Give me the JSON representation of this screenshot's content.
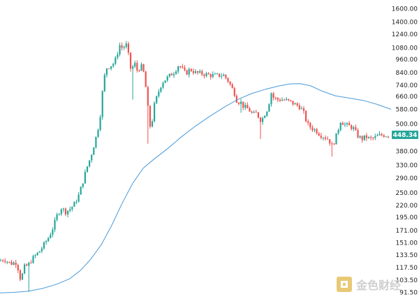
{
  "chart_data": {
    "type": "candlestick",
    "title": "",
    "xlabel": "",
    "ylabel": "",
    "y_scale": "log",
    "ylim": [
      88,
      1700
    ],
    "grid": false,
    "up_color": "#26a69a",
    "down_color": "#ef5350",
    "ma_color": "#4a9ad8",
    "last_price": 448.34,
    "last_price_label": "448.34",
    "last_price_color": "#26a69a",
    "y_ticks": [
      1600,
      1400,
      1240,
      1080,
      960,
      840,
      740,
      660,
      580,
      500,
      448.34,
      380,
      330,
      290,
      250,
      220,
      195,
      171,
      151,
      133.5,
      117.5,
      103.5,
      91.5
    ],
    "y_tick_labels": [
      "1600.00",
      "1400.00",
      "1240.00",
      "1080.00",
      "960.00",
      "840.00",
      "740.00",
      "660.00",
      "580.00",
      "500.00",
      "",
      "380.00",
      "330.00",
      "290.00",
      "250.00",
      "220.00",
      "195.00",
      "171.00",
      "151.00",
      "133.50",
      "117.50",
      "103.50",
      "91.50"
    ],
    "anchors": [
      [
        0,
        126
      ],
      [
        6,
        128
      ],
      [
        12,
        124
      ],
      [
        18,
        122
      ],
      [
        22,
        125
      ],
      [
        26,
        116
      ],
      [
        30,
        102
      ],
      [
        34,
        118
      ],
      [
        40,
        120
      ],
      [
        46,
        128
      ],
      [
        52,
        134
      ],
      [
        58,
        140
      ],
      [
        64,
        150
      ],
      [
        70,
        160
      ],
      [
        76,
        176
      ],
      [
        82,
        200
      ],
      [
        88,
        215
      ],
      [
        94,
        206
      ],
      [
        100,
        212
      ],
      [
        106,
        222
      ],
      [
        112,
        240
      ],
      [
        118,
        275
      ],
      [
        124,
        320
      ],
      [
        130,
        360
      ],
      [
        136,
        420
      ],
      [
        140,
        470
      ],
      [
        144,
        560
      ],
      [
        148,
        760
      ],
      [
        152,
        880
      ],
      [
        158,
        900
      ],
      [
        164,
        930
      ],
      [
        168,
        1020
      ],
      [
        172,
        1120
      ],
      [
        176,
        1060
      ],
      [
        180,
        1140
      ],
      [
        184,
        1000
      ],
      [
        188,
        840
      ],
      [
        192,
        940
      ],
      [
        196,
        860
      ],
      [
        200,
        880
      ],
      [
        204,
        900
      ],
      [
        208,
        760
      ],
      [
        212,
        580
      ],
      [
        216,
        460
      ],
      [
        220,
        590
      ],
      [
        226,
        680
      ],
      [
        232,
        760
      ],
      [
        238,
        790
      ],
      [
        244,
        820
      ],
      [
        250,
        850
      ],
      [
        256,
        910
      ],
      [
        260,
        880
      ],
      [
        266,
        830
      ],
      [
        272,
        870
      ],
      [
        280,
        840
      ],
      [
        290,
        830
      ],
      [
        300,
        820
      ],
      [
        310,
        815
      ],
      [
        320,
        820
      ],
      [
        326,
        780
      ],
      [
        330,
        740
      ],
      [
        336,
        680
      ],
      [
        340,
        620
      ],
      [
        344,
        630
      ],
      [
        348,
        600
      ],
      [
        352,
        590
      ],
      [
        356,
        580
      ],
      [
        362,
        550
      ],
      [
        368,
        560
      ],
      [
        372,
        520
      ],
      [
        376,
        530
      ],
      [
        380,
        560
      ],
      [
        384,
        590
      ],
      [
        388,
        690
      ],
      [
        392,
        650
      ],
      [
        398,
        640
      ],
      [
        404,
        640
      ],
      [
        410,
        635
      ],
      [
        416,
        625
      ],
      [
        422,
        610
      ],
      [
        428,
        600
      ],
      [
        434,
        570
      ],
      [
        440,
        500
      ],
      [
        446,
        480
      ],
      [
        452,
        470
      ],
      [
        458,
        450
      ],
      [
        464,
        440
      ],
      [
        470,
        430
      ],
      [
        476,
        400
      ],
      [
        480,
        430
      ],
      [
        484,
        470
      ],
      [
        488,
        520
      ],
      [
        492,
        500
      ],
      [
        496,
        495
      ],
      [
        500,
        490
      ],
      [
        506,
        480
      ],
      [
        512,
        445
      ],
      [
        518,
        430
      ],
      [
        524,
        440
      ],
      [
        530,
        430
      ],
      [
        536,
        435
      ],
      [
        542,
        445
      ],
      [
        548,
        448
      ],
      [
        554,
        446
      ],
      [
        558,
        448
      ]
    ],
    "spikes": [
      [
        40,
        92
      ],
      [
        212,
        410
      ],
      [
        372,
        430
      ],
      [
        476,
        360
      ],
      [
        344,
        560
      ],
      [
        190,
        640
      ]
    ],
    "ma_series": [
      [
        0,
        91
      ],
      [
        20,
        91.5
      ],
      [
        40,
        92.5
      ],
      [
        60,
        95
      ],
      [
        80,
        99
      ],
      [
        100,
        105
      ],
      [
        115,
        114
      ],
      [
        130,
        128
      ],
      [
        145,
        148
      ],
      [
        160,
        180
      ],
      [
        175,
        225
      ],
      [
        190,
        275
      ],
      [
        205,
        320
      ],
      [
        220,
        350
      ],
      [
        240,
        390
      ],
      [
        260,
        440
      ],
      [
        280,
        490
      ],
      [
        300,
        540
      ],
      [
        320,
        590
      ],
      [
        340,
        640
      ],
      [
        360,
        680
      ],
      [
        380,
        710
      ],
      [
        400,
        735
      ],
      [
        415,
        750
      ],
      [
        430,
        752
      ],
      [
        445,
        735
      ],
      [
        460,
        700
      ],
      [
        480,
        665
      ],
      [
        500,
        650
      ],
      [
        520,
        635
      ],
      [
        540,
        610
      ],
      [
        560,
        580
      ]
    ]
  },
  "watermark": {
    "text": "金色财经",
    "icon": "gold-finance-logo-icon"
  }
}
